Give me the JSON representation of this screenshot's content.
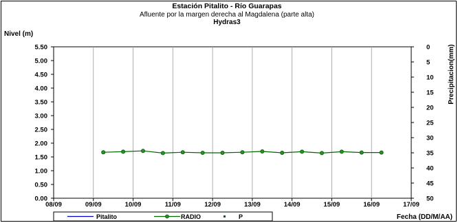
{
  "chart_data": {
    "type": "line",
    "title": "Estación Pitalito  - Río Guarapas",
    "subtitle": "Afluente por la margen derecha al Magdalena (parte alta)",
    "subtitle2": "Hydras3",
    "ylabel": "Nivel (m)",
    "y2label": "Precipitacion(mm)",
    "xlabel": "Fecha (DD/M/AA)",
    "ylim": [
      0,
      5.5
    ],
    "y2lim": [
      0,
      50
    ],
    "y2_inverted": true,
    "xlim": [
      0,
      9
    ],
    "x_ticks": [
      "08/09",
      "09/09",
      "10/09",
      "11/09",
      "12/09",
      "13/09",
      "14/09",
      "15/09",
      "16/09",
      "17/09"
    ],
    "y_ticks": [
      "0.00",
      "0.50",
      "1.00",
      "1.50",
      "2.00",
      "2.50",
      "3.00",
      "3.50",
      "4.00",
      "4.50",
      "5.00",
      "5.50"
    ],
    "y2_ticks": [
      "0",
      "5",
      "10",
      "15",
      "20",
      "25",
      "30",
      "35",
      "40",
      "45",
      "50"
    ],
    "grid": "vertical",
    "legend_position": "bottom-left",
    "series": [
      {
        "name": "Pitalito",
        "color": "#0000cc",
        "x": [],
        "values": []
      },
      {
        "name": "RADIO",
        "color": "#006400",
        "marker": "circle",
        "x": [
          1.25,
          1.75,
          2.25,
          2.75,
          3.25,
          3.75,
          4.25,
          4.75,
          5.25,
          5.75,
          6.25,
          6.75,
          7.25,
          7.75,
          8.25
        ],
        "values": [
          1.67,
          1.69,
          1.72,
          1.64,
          1.67,
          1.65,
          1.65,
          1.67,
          1.7,
          1.65,
          1.69,
          1.64,
          1.69,
          1.66,
          1.66
        ]
      },
      {
        "name": "P",
        "color": "#006400",
        "marker": "square",
        "x": [],
        "values": []
      }
    ]
  }
}
